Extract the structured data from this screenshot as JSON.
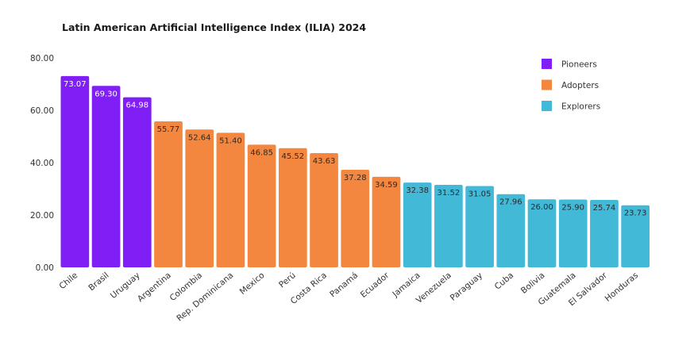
{
  "chart_data": {
    "type": "bar",
    "title": "Latin American Artificial Intelligence Index (ILIA) 2024",
    "xlabel": "",
    "ylabel": "",
    "ylim": [
      0,
      80
    ],
    "yticks": [
      "0.00",
      "20.00",
      "40.00",
      "60.00",
      "80.00"
    ],
    "grid": false,
    "legend_position": "top-right",
    "legend": [
      {
        "name": "Pioneers",
        "color": "#7f1ef5"
      },
      {
        "name": "Adopters",
        "color": "#f4873f"
      },
      {
        "name": "Explorers",
        "color": "#43b9d8"
      }
    ],
    "categories": [
      "Chile",
      "Brasil",
      "Uruguay",
      "Argentina",
      "Colombia",
      "Rep. Dominicana",
      "Mexico",
      "Perú",
      "Costa Rica",
      "Panamá",
      "Ecuador",
      "Jamaica",
      "Venezuela",
      "Paraguay",
      "Cuba",
      "Bolivia",
      "Guatemala",
      "El Salvador",
      "Honduras"
    ],
    "values": [
      73.07,
      69.3,
      64.98,
      55.77,
      52.64,
      51.4,
      46.85,
      45.52,
      43.63,
      37.28,
      34.59,
      32.38,
      31.52,
      31.05,
      27.96,
      26.0,
      25.9,
      25.74,
      23.73
    ],
    "value_labels": [
      "73.07",
      "69.30",
      "64.98",
      "55.77",
      "52.64",
      "51.40",
      "46.85",
      "45.52",
      "43.63",
      "37.28",
      "34.59",
      "32.38",
      "31.52",
      "31.05",
      "27.96",
      "26.00",
      "25.90",
      "25.74",
      "23.73"
    ],
    "groups": [
      "Pioneers",
      "Pioneers",
      "Pioneers",
      "Adopters",
      "Adopters",
      "Adopters",
      "Adopters",
      "Adopters",
      "Adopters",
      "Adopters",
      "Adopters",
      "Explorers",
      "Explorers",
      "Explorers",
      "Explorers",
      "Explorers",
      "Explorers",
      "Explorers",
      "Explorers"
    ]
  }
}
